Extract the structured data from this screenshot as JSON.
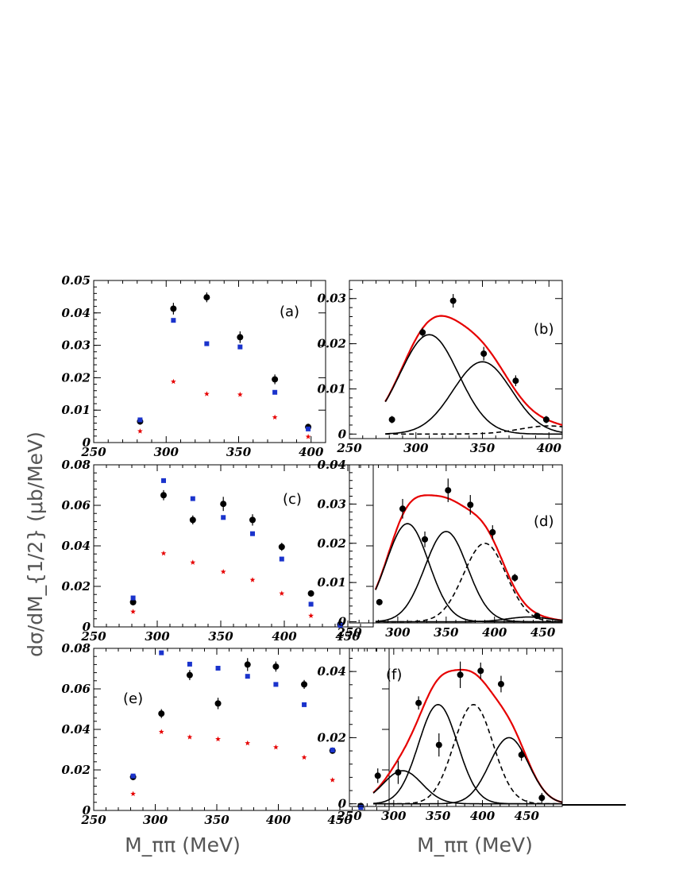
{
  "figure": {
    "ylabel": "dσ/dM_{1/2} (μb/MeV)",
    "xlabel": "M_ππ (MeV)",
    "colors": {
      "data": "#000000",
      "squares": "#1a33cc",
      "stars": "#e60000",
      "fit": "#e60000",
      "component": "#000000"
    }
  },
  "chart_data": [
    {
      "type": "scatter",
      "label": "(a)",
      "xlim": [
        250,
        410
      ],
      "ylim": [
        0,
        0.05
      ],
      "xticks": [
        250,
        300,
        350,
        400
      ],
      "yticks": [
        0,
        0.01,
        0.02,
        0.03,
        0.04,
        0.05
      ],
      "ytick_labels": [
        "0",
        "0.01",
        "0.02",
        "0.03",
        "0.04",
        "0.05"
      ],
      "series": [
        {
          "marker": "circle",
          "x": [
            282,
            305,
            328,
            351,
            375,
            398
          ],
          "y": [
            0.0065,
            0.0413,
            0.0448,
            0.0325,
            0.0195,
            0.0048
          ],
          "err": [
            0.001,
            0.0018,
            0.0015,
            0.0018,
            0.0015,
            0.001
          ]
        },
        {
          "marker": "square",
          "x": [
            282,
            305,
            328,
            351,
            375,
            398
          ],
          "y": [
            0.007,
            0.0377,
            0.0305,
            0.0295,
            0.0155,
            0.0042
          ]
        },
        {
          "marker": "star",
          "x": [
            282,
            305,
            328,
            351,
            375,
            398
          ],
          "y": [
            0.0035,
            0.0188,
            0.015,
            0.0148,
            0.0078,
            0.0018
          ]
        }
      ]
    },
    {
      "type": "line",
      "label": "(b)",
      "xlim": [
        250,
        410
      ],
      "ylim": [
        -0.001,
        0.034
      ],
      "xticks": [
        250,
        300,
        350,
        400
      ],
      "yticks": [
        0,
        0.01,
        0.02,
        0.03
      ],
      "ytick_labels": [
        "0",
        "0.01",
        "0.02",
        "0.03"
      ],
      "series": [
        {
          "marker": "circle",
          "x": [
            282,
            305,
            328,
            351,
            375,
            398
          ],
          "y": [
            0.0032,
            0.0225,
            0.0295,
            0.0178,
            0.0118,
            0.0032
          ],
          "err": [
            0.0008,
            0.001,
            0.0015,
            0.0015,
            0.0012,
            0.0008
          ]
        }
      ],
      "curves": [
        {
          "style": "solid",
          "color": "fit",
          "peaks": [
            [
              310,
              0.022,
              22
            ],
            [
              350,
              0.016,
              22
            ],
            [
              400,
              0.0018,
              22
            ]
          ],
          "range": [
            277,
            410
          ]
        },
        {
          "style": "solid",
          "color": "component",
          "peaks": [
            [
              310,
              0.022,
              22
            ]
          ],
          "range": [
            277,
            410
          ]
        },
        {
          "style": "solid",
          "color": "component",
          "peaks": [
            [
              350,
              0.016,
              22
            ]
          ],
          "range": [
            277,
            410
          ]
        },
        {
          "style": "dashed",
          "color": "component",
          "peaks": [
            [
              400,
              0.0018,
              22
            ]
          ],
          "range": [
            277,
            410
          ]
        }
      ]
    },
    {
      "type": "scatter",
      "label": "(c)",
      "xlim": [
        250,
        470
      ],
      "ylim": [
        0,
        0.08
      ],
      "xticks": [
        250,
        300,
        350,
        400,
        450
      ],
      "yticks": [
        0,
        0.02,
        0.04,
        0.06,
        0.08
      ],
      "ytick_labels": [
        "0",
        "0.02",
        "0.04",
        "0.06",
        "0.08"
      ],
      "series": [
        {
          "marker": "circle",
          "x": [
            281,
            305,
            328,
            352,
            375,
            398,
            421,
            444
          ],
          "y": [
            0.0122,
            0.065,
            0.0528,
            0.0607,
            0.0528,
            0.0395,
            0.0165,
            0.0012
          ],
          "err": [
            0.0015,
            0.0025,
            0.0022,
            0.0035,
            0.0028,
            0.002,
            0.0015,
            0.0008
          ]
        },
        {
          "marker": "square",
          "x": [
            281,
            305,
            328,
            352,
            375,
            398,
            421,
            444
          ],
          "y": [
            0.0143,
            0.0722,
            0.0633,
            0.054,
            0.046,
            0.0335,
            0.0112,
            0.0008
          ]
        },
        {
          "marker": "star",
          "x": [
            281,
            305,
            328,
            352,
            375,
            398,
            421
          ],
          "y": [
            0.0075,
            0.0363,
            0.0318,
            0.0272,
            0.0232,
            0.0165,
            0.0055
          ]
        }
      ]
    },
    {
      "type": "line",
      "label": "(d)",
      "xlim": [
        250,
        470
      ],
      "ylim": [
        -0.0003,
        0.04
      ],
      "xticks": [
        250,
        300,
        350,
        400,
        450
      ],
      "yticks": [
        0,
        0.01,
        0.02,
        0.03,
        0.04
      ],
      "ytick_labels": [
        "0",
        "0.01",
        "0.02",
        "0.03",
        "0.04"
      ],
      "series": [
        {
          "marker": "circle",
          "x": [
            281,
            305,
            328,
            352,
            375,
            398,
            421,
            444
          ],
          "y": [
            0.005,
            0.0288,
            0.021,
            0.0335,
            0.0298,
            0.0228,
            0.0112,
            0.0015
          ],
          "err": [
            0.0008,
            0.0025,
            0.002,
            0.003,
            0.0025,
            0.0018,
            0.001,
            0.0008
          ]
        }
      ],
      "curves": [
        {
          "style": "solid",
          "color": "fit",
          "peaks": [
            [
              310,
              0.025,
              22
            ],
            [
              350,
              0.023,
              22
            ],
            [
              390,
              0.02,
              22
            ],
            [
              435,
              0.0012,
              22
            ]
          ],
          "range": [
            277,
            470
          ]
        },
        {
          "style": "solid",
          "color": "component",
          "peaks": [
            [
              310,
              0.025,
              22
            ]
          ],
          "range": [
            277,
            470
          ]
        },
        {
          "style": "solid",
          "color": "component",
          "peaks": [
            [
              350,
              0.023,
              22
            ]
          ],
          "range": [
            277,
            470
          ]
        },
        {
          "style": "dashed",
          "color": "component",
          "peaks": [
            [
              390,
              0.02,
              22
            ]
          ],
          "range": [
            277,
            470
          ]
        },
        {
          "style": "solid",
          "color": "component",
          "peaks": [
            [
              435,
              0.0012,
              22
            ]
          ],
          "range": [
            277,
            470
          ]
        }
      ]
    },
    {
      "type": "scatter",
      "label": "(e)",
      "xlim": [
        250,
        490
      ],
      "ylim": [
        0,
        0.08
      ],
      "xticks": [
        250,
        300,
        350,
        400,
        450
      ],
      "yticks": [
        0,
        0.02,
        0.04,
        0.06,
        0.08
      ],
      "ytick_labels": [
        "0",
        "0.02",
        "0.04",
        "0.06",
        "0.08"
      ],
      "series": [
        {
          "marker": "circle",
          "x": [
            282,
            305,
            328,
            351,
            375,
            398,
            421,
            444,
            467
          ],
          "y": [
            0.0165,
            0.0478,
            0.0668,
            0.0528,
            0.072,
            0.071,
            0.0622,
            0.0295,
            0.0022
          ],
          "err": [
            0.0015,
            0.0022,
            0.0025,
            0.0028,
            0.0032,
            0.0025,
            0.0022,
            0.0015,
            0.001
          ]
        },
        {
          "marker": "square",
          "x": [
            282,
            305,
            328,
            351,
            375,
            398,
            421,
            444,
            467
          ],
          "y": [
            0.017,
            0.0778,
            0.0722,
            0.0702,
            0.0662,
            0.0622,
            0.0522,
            0.0298,
            0.0015
          ]
        },
        {
          "marker": "star",
          "x": [
            282,
            305,
            328,
            351,
            375,
            398,
            421,
            444
          ],
          "y": [
            0.0082,
            0.0388,
            0.0362,
            0.0352,
            0.0332,
            0.0312,
            0.0262,
            0.015
          ]
        }
      ]
    },
    {
      "type": "line",
      "label": "(f)",
      "xlim": [
        250,
        490
      ],
      "ylim": [
        -0.0008,
        0.047
      ],
      "xticks": [
        250,
        300,
        350,
        400,
        450
      ],
      "yticks": [
        0,
        0.02,
        0.04
      ],
      "ytick_labels": [
        "0",
        "0.02",
        "0.04"
      ],
      "series": [
        {
          "marker": "circle",
          "x": [
            282,
            305,
            328,
            351,
            375,
            398,
            421,
            444,
            467
          ],
          "y": [
            0.0085,
            0.0095,
            0.0305,
            0.0178,
            0.039,
            0.0402,
            0.0362,
            0.0148,
            0.0018
          ],
          "err": [
            0.0022,
            0.0035,
            0.002,
            0.0035,
            0.004,
            0.0025,
            0.0025,
            0.0018,
            0.0015
          ]
        }
      ],
      "curves": [
        {
          "style": "solid",
          "color": "fit",
          "peaks": [
            [
              310,
              0.01,
              22
            ],
            [
              350,
              0.03,
              22
            ],
            [
              390,
              0.03,
              22
            ],
            [
              430,
              0.02,
              22
            ]
          ],
          "range": [
            277,
            490
          ]
        },
        {
          "style": "solid",
          "color": "component",
          "peaks": [
            [
              310,
              0.01,
              22
            ]
          ],
          "range": [
            277,
            490
          ]
        },
        {
          "style": "solid",
          "color": "component",
          "peaks": [
            [
              350,
              0.03,
              22
            ]
          ],
          "range": [
            277,
            490
          ]
        },
        {
          "style": "dashed",
          "color": "component",
          "peaks": [
            [
              390,
              0.03,
              22
            ]
          ],
          "range": [
            277,
            490
          ]
        },
        {
          "style": "solid",
          "color": "component",
          "peaks": [
            [
              430,
              0.02,
              22
            ]
          ],
          "range": [
            277,
            490
          ]
        }
      ]
    }
  ]
}
